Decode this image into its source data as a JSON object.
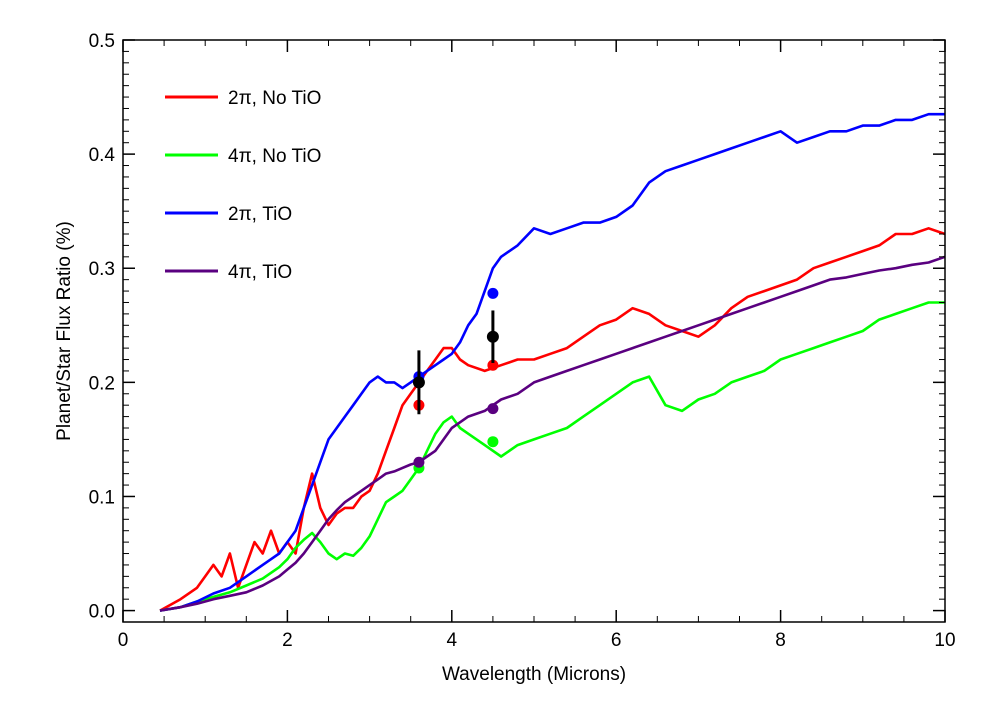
{
  "chart_data": {
    "type": "line",
    "xlabel": "Wavelength (Microns)",
    "ylabel": "Planet/Star Flux Ratio (%)",
    "xlim": [
      0,
      10
    ],
    "ylim": [
      -0.01,
      0.5
    ],
    "xticks": [
      0,
      2,
      4,
      6,
      8,
      10
    ],
    "yticks": [
      0.0,
      0.1,
      0.2,
      0.3,
      0.4,
      0.5
    ],
    "xtick_labels": [
      "0",
      "2",
      "4",
      "6",
      "8",
      "10"
    ],
    "ytick_labels": [
      "0.0",
      "0.1",
      "0.2",
      "0.3",
      "0.4",
      "0.5"
    ],
    "legend_position": "top-left",
    "series": [
      {
        "name": "2π, No TiO",
        "color": "#ff0000",
        "x": [
          0.45,
          0.7,
          0.9,
          1.0,
          1.1,
          1.2,
          1.3,
          1.4,
          1.5,
          1.6,
          1.7,
          1.8,
          1.9,
          2.0,
          2.1,
          2.2,
          2.3,
          2.4,
          2.5,
          2.6,
          2.7,
          2.8,
          2.9,
          3.0,
          3.1,
          3.2,
          3.3,
          3.4,
          3.5,
          3.6,
          3.7,
          3.8,
          3.9,
          4.0,
          4.1,
          4.2,
          4.4,
          4.6,
          4.8,
          5.0,
          5.2,
          5.4,
          5.6,
          5.8,
          6.0,
          6.2,
          6.4,
          6.6,
          6.8,
          7.0,
          7.2,
          7.4,
          7.6,
          7.8,
          8.0,
          8.2,
          8.4,
          8.6,
          8.8,
          9.0,
          9.2,
          9.4,
          9.6,
          9.8,
          10.0
        ],
        "y": [
          0.0,
          0.01,
          0.02,
          0.03,
          0.04,
          0.03,
          0.05,
          0.02,
          0.04,
          0.06,
          0.05,
          0.07,
          0.05,
          0.06,
          0.05,
          0.09,
          0.12,
          0.09,
          0.075,
          0.085,
          0.09,
          0.09,
          0.1,
          0.105,
          0.12,
          0.14,
          0.16,
          0.18,
          0.19,
          0.2,
          0.21,
          0.22,
          0.23,
          0.23,
          0.22,
          0.215,
          0.21,
          0.215,
          0.22,
          0.22,
          0.225,
          0.23,
          0.24,
          0.25,
          0.255,
          0.265,
          0.26,
          0.25,
          0.245,
          0.24,
          0.25,
          0.265,
          0.275,
          0.28,
          0.285,
          0.29,
          0.3,
          0.305,
          0.31,
          0.315,
          0.32,
          0.33,
          0.33,
          0.335,
          0.33
        ]
      },
      {
        "name": "4π, No TiO",
        "color": "#00ff00",
        "x": [
          0.45,
          0.7,
          0.9,
          1.1,
          1.3,
          1.5,
          1.7,
          1.9,
          2.0,
          2.1,
          2.2,
          2.3,
          2.4,
          2.5,
          2.6,
          2.7,
          2.8,
          2.9,
          3.0,
          3.1,
          3.2,
          3.3,
          3.4,
          3.5,
          3.6,
          3.7,
          3.8,
          3.9,
          4.0,
          4.1,
          4.2,
          4.4,
          4.6,
          4.8,
          5.0,
          5.2,
          5.4,
          5.6,
          5.8,
          6.0,
          6.2,
          6.4,
          6.6,
          6.8,
          7.0,
          7.2,
          7.4,
          7.6,
          7.8,
          8.0,
          8.2,
          8.4,
          8.6,
          8.8,
          9.0,
          9.2,
          9.4,
          9.6,
          9.8,
          10.0
        ],
        "y": [
          0.0,
          0.003,
          0.008,
          0.012,
          0.016,
          0.022,
          0.028,
          0.038,
          0.045,
          0.055,
          0.062,
          0.068,
          0.06,
          0.05,
          0.045,
          0.05,
          0.048,
          0.055,
          0.065,
          0.08,
          0.095,
          0.1,
          0.105,
          0.115,
          0.125,
          0.14,
          0.155,
          0.165,
          0.17,
          0.16,
          0.155,
          0.145,
          0.135,
          0.145,
          0.15,
          0.155,
          0.16,
          0.17,
          0.18,
          0.19,
          0.2,
          0.205,
          0.18,
          0.175,
          0.185,
          0.19,
          0.2,
          0.205,
          0.21,
          0.22,
          0.225,
          0.23,
          0.235,
          0.24,
          0.245,
          0.255,
          0.26,
          0.265,
          0.27,
          0.27
        ]
      },
      {
        "name": "2π, TiO",
        "color": "#0000ff",
        "x": [
          0.45,
          0.7,
          0.9,
          1.1,
          1.3,
          1.5,
          1.7,
          1.8,
          1.9,
          2.0,
          2.1,
          2.2,
          2.3,
          2.4,
          2.5,
          2.6,
          2.7,
          2.8,
          2.9,
          3.0,
          3.1,
          3.2,
          3.3,
          3.4,
          3.5,
          3.6,
          3.7,
          3.8,
          3.9,
          4.0,
          4.1,
          4.2,
          4.3,
          4.4,
          4.5,
          4.6,
          4.8,
          5.0,
          5.2,
          5.4,
          5.6,
          5.8,
          6.0,
          6.2,
          6.4,
          6.6,
          6.8,
          7.0,
          7.2,
          7.4,
          7.6,
          7.8,
          8.0,
          8.2,
          8.4,
          8.6,
          8.8,
          9.0,
          9.2,
          9.4,
          9.6,
          9.8,
          10.0
        ],
        "y": [
          0.0,
          0.003,
          0.008,
          0.015,
          0.02,
          0.03,
          0.04,
          0.045,
          0.05,
          0.06,
          0.07,
          0.09,
          0.11,
          0.13,
          0.15,
          0.16,
          0.17,
          0.18,
          0.19,
          0.2,
          0.205,
          0.2,
          0.2,
          0.195,
          0.2,
          0.205,
          0.21,
          0.215,
          0.22,
          0.225,
          0.235,
          0.25,
          0.26,
          0.28,
          0.3,
          0.31,
          0.32,
          0.335,
          0.33,
          0.335,
          0.34,
          0.34,
          0.345,
          0.355,
          0.375,
          0.385,
          0.39,
          0.395,
          0.4,
          0.405,
          0.41,
          0.415,
          0.42,
          0.41,
          0.415,
          0.42,
          0.42,
          0.425,
          0.425,
          0.43,
          0.43,
          0.435,
          0.435
        ]
      },
      {
        "name": "4π, TiO",
        "color": "#5a0080",
        "x": [
          0.45,
          0.7,
          0.9,
          1.1,
          1.3,
          1.5,
          1.7,
          1.9,
          2.0,
          2.1,
          2.2,
          2.3,
          2.4,
          2.5,
          2.6,
          2.7,
          2.8,
          2.9,
          3.0,
          3.1,
          3.2,
          3.3,
          3.4,
          3.5,
          3.6,
          3.7,
          3.8,
          3.9,
          4.0,
          4.1,
          4.2,
          4.4,
          4.6,
          4.8,
          5.0,
          5.2,
          5.4,
          5.6,
          5.8,
          6.0,
          6.2,
          6.4,
          6.6,
          6.8,
          7.0,
          7.2,
          7.4,
          7.6,
          7.8,
          8.0,
          8.2,
          8.4,
          8.6,
          8.8,
          9.0,
          9.2,
          9.4,
          9.6,
          9.8,
          10.0
        ],
        "y": [
          0.0,
          0.003,
          0.006,
          0.01,
          0.013,
          0.016,
          0.022,
          0.03,
          0.036,
          0.042,
          0.05,
          0.06,
          0.07,
          0.08,
          0.088,
          0.095,
          0.1,
          0.105,
          0.11,
          0.115,
          0.12,
          0.122,
          0.125,
          0.128,
          0.13,
          0.135,
          0.14,
          0.15,
          0.16,
          0.165,
          0.17,
          0.175,
          0.185,
          0.19,
          0.2,
          0.205,
          0.21,
          0.215,
          0.22,
          0.225,
          0.23,
          0.235,
          0.24,
          0.245,
          0.25,
          0.255,
          0.26,
          0.265,
          0.27,
          0.275,
          0.28,
          0.285,
          0.29,
          0.292,
          0.295,
          0.298,
          0.3,
          0.303,
          0.305,
          0.31
        ]
      }
    ],
    "model_points": [
      {
        "series": "2π, No TiO",
        "color": "#ff0000",
        "x": [
          3.6,
          4.5
        ],
        "y": [
          0.18,
          0.215
        ]
      },
      {
        "series": "4π, No TiO",
        "color": "#00ff00",
        "x": [
          3.6,
          4.5
        ],
        "y": [
          0.125,
          0.148
        ]
      },
      {
        "series": "2π, TiO",
        "color": "#0000ff",
        "x": [
          3.6,
          4.5
        ],
        "y": [
          0.205,
          0.278
        ]
      },
      {
        "series": "4π, TiO",
        "color": "#5a0080",
        "x": [
          3.6,
          4.5
        ],
        "y": [
          0.13,
          0.177
        ]
      }
    ],
    "observations": {
      "color": "#000000",
      "x": [
        3.6,
        4.5
      ],
      "y": [
        0.2,
        0.24
      ],
      "yerr": [
        0.028,
        0.023
      ]
    }
  }
}
